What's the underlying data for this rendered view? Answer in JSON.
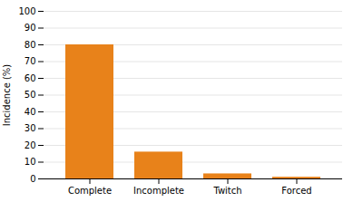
{
  "chart_data": {
    "type": "bar",
    "categories": [
      "Complete",
      "Incomplete",
      "Twitch",
      "Forced"
    ],
    "values": [
      80,
      16,
      3,
      1
    ],
    "color": "#E8821A",
    "ylabel": "Incidence (%)",
    "ylim": [
      0,
      100
    ],
    "yticks": [
      0,
      10,
      20,
      30,
      40,
      50,
      60,
      70,
      80,
      90,
      100
    ],
    "grid": true
  }
}
